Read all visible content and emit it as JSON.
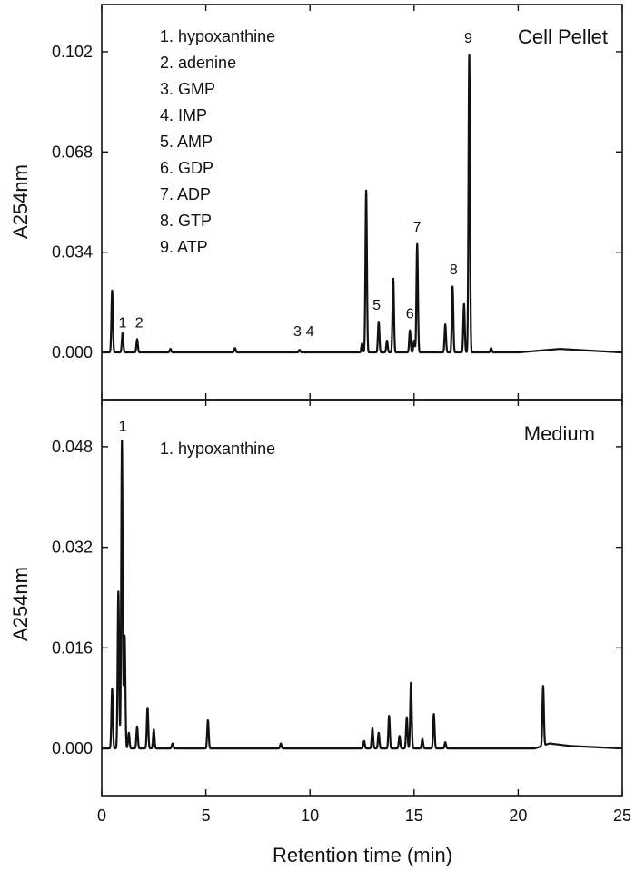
{
  "chart_data": [
    {
      "type": "line",
      "title": "Cell Pellet",
      "xlabel": "Retention time (min)",
      "ylabel": "A254nm",
      "xlim": [
        0,
        25
      ],
      "ylim": [
        -0.016,
        0.118
      ],
      "x_ticks": [
        0,
        5,
        10,
        15,
        20,
        25
      ],
      "y_ticks": [
        0.0,
        0.034,
        0.068,
        0.102
      ],
      "y_tick_labels": [
        "0.000",
        "0.034",
        "0.068",
        "0.102"
      ],
      "grid": false,
      "legend_position": "top-left",
      "legend": [
        "1. hypoxanthine",
        "2. adenine",
        "3. GMP",
        "4. IMP",
        "5. AMP",
        "6. GDP",
        "7. ADP",
        "8. GTP",
        "9. ATP"
      ],
      "baseline": 0.0,
      "drift": [
        [
          0,
          0.0
        ],
        [
          20,
          0.0
        ],
        [
          21,
          0.0006
        ],
        [
          22,
          0.0012
        ],
        [
          24,
          0.0004
        ],
        [
          25,
          0.0
        ]
      ],
      "peaks": [
        {
          "x": 0.5,
          "y": 0.021
        },
        {
          "x": 1.0,
          "y": 0.0065
        },
        {
          "x": 1.7,
          "y": 0.0045
        },
        {
          "x": 3.3,
          "y": 0.0012
        },
        {
          "x": 6.4,
          "y": 0.0015
        },
        {
          "x": 9.5,
          "y": 0.0009
        },
        {
          "x": 12.5,
          "y": 0.003
        },
        {
          "x": 12.7,
          "y": 0.055
        },
        {
          "x": 13.3,
          "y": 0.0105
        },
        {
          "x": 13.7,
          "y": 0.004
        },
        {
          "x": 14.0,
          "y": 0.025
        },
        {
          "x": 14.8,
          "y": 0.0075
        },
        {
          "x": 15.0,
          "y": 0.004
        },
        {
          "x": 15.15,
          "y": 0.037
        },
        {
          "x": 16.5,
          "y": 0.0095
        },
        {
          "x": 16.85,
          "y": 0.0225
        },
        {
          "x": 17.4,
          "y": 0.0165
        },
        {
          "x": 17.65,
          "y": 0.1015
        },
        {
          "x": 18.7,
          "y": 0.0015
        }
      ],
      "peak_labels": [
        {
          "text": "1",
          "x": 1.0,
          "y": 0.0085
        },
        {
          "text": "2",
          "x": 1.8,
          "y": 0.0085
        },
        {
          "text": "3",
          "x": 9.4,
          "y": 0.0055
        },
        {
          "text": "4",
          "x": 10.0,
          "y": 0.0055
        },
        {
          "text": "5",
          "x": 13.2,
          "y": 0.0145
        },
        {
          "text": "6",
          "x": 14.8,
          "y": 0.0115
        },
        {
          "text": "7",
          "x": 15.15,
          "y": 0.041
        },
        {
          "text": "8",
          "x": 16.9,
          "y": 0.0265
        },
        {
          "text": "9",
          "x": 17.6,
          "y": 0.105
        }
      ]
    },
    {
      "type": "line",
      "title": "Medium",
      "xlabel": "Retention time (min)",
      "ylabel": "A254nm",
      "xlim": [
        0,
        25
      ],
      "ylim": [
        -0.0075,
        0.0555
      ],
      "x_ticks": [
        0,
        5,
        10,
        15,
        20,
        25
      ],
      "y_ticks": [
        0.0,
        0.016,
        0.032,
        0.048
      ],
      "y_tick_labels": [
        "0.000",
        "0.016",
        "0.032",
        "0.048"
      ],
      "grid": false,
      "legend_position": "top-left",
      "legend": [
        "1. hypoxanthine"
      ],
      "baseline": 0.0,
      "drift": [
        [
          0,
          0.0
        ],
        [
          20.8,
          0.0
        ],
        [
          21.5,
          0.0008
        ],
        [
          22.5,
          0.0004
        ],
        [
          25,
          0.0
        ]
      ],
      "peaks": [
        {
          "x": 0.5,
          "y": 0.0095
        },
        {
          "x": 0.8,
          "y": 0.025
        },
        {
          "x": 0.97,
          "y": 0.049
        },
        {
          "x": 1.1,
          "y": 0.018
        },
        {
          "x": 1.3,
          "y": 0.0025
        },
        {
          "x": 1.7,
          "y": 0.0035
        },
        {
          "x": 2.2,
          "y": 0.0065
        },
        {
          "x": 2.5,
          "y": 0.003
        },
        {
          "x": 3.4,
          "y": 0.0008
        },
        {
          "x": 5.1,
          "y": 0.0045
        },
        {
          "x": 8.6,
          "y": 0.0008
        },
        {
          "x": 12.6,
          "y": 0.0012
        },
        {
          "x": 13.0,
          "y": 0.0032
        },
        {
          "x": 13.3,
          "y": 0.0025
        },
        {
          "x": 13.8,
          "y": 0.0052
        },
        {
          "x": 14.3,
          "y": 0.002
        },
        {
          "x": 14.65,
          "y": 0.005
        },
        {
          "x": 14.85,
          "y": 0.0105
        },
        {
          "x": 15.4,
          "y": 0.0015
        },
        {
          "x": 15.95,
          "y": 0.0055
        },
        {
          "x": 16.5,
          "y": 0.001
        },
        {
          "x": 21.2,
          "y": 0.0095
        }
      ],
      "peak_labels": [
        {
          "text": "1",
          "x": 1.0,
          "y": 0.0505
        }
      ]
    }
  ]
}
